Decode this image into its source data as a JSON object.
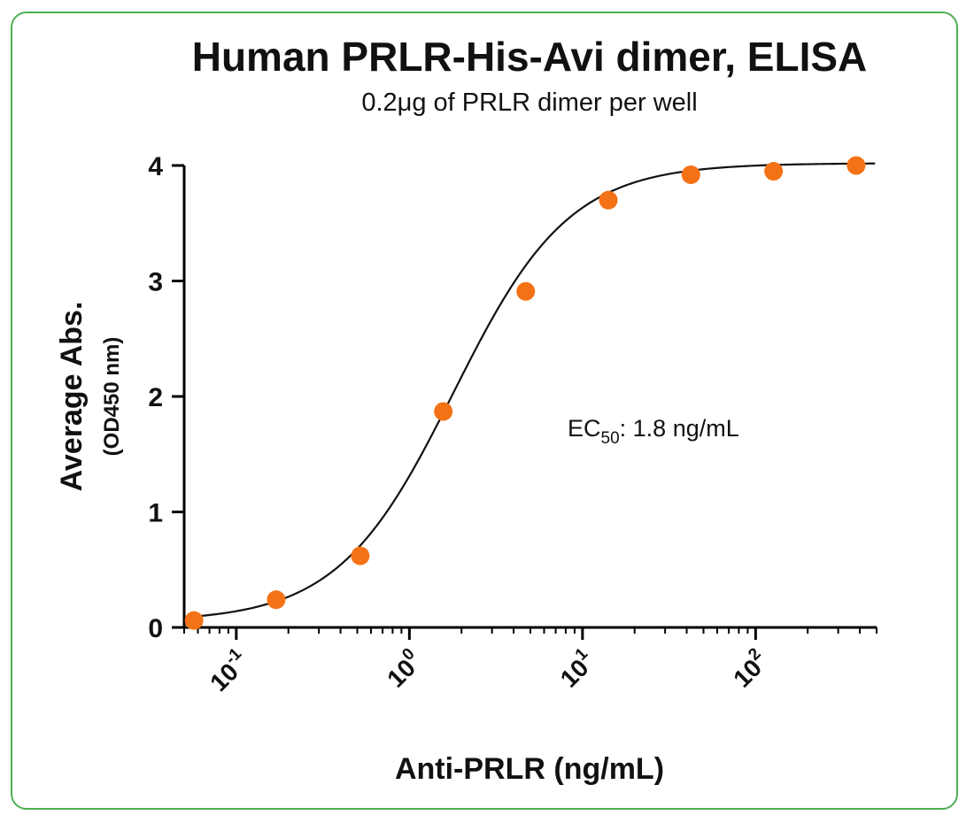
{
  "colors": {
    "frame": "#4caf50",
    "point": "#f47216",
    "curve": "#111111",
    "axis": "#000000"
  },
  "chart_data": {
    "type": "scatter",
    "title": "Human PRLR-His-Avi dimer, ELISA",
    "subtitle": "0.2μg of PRLR dimer per well",
    "ylabel": "Average Abs.",
    "ylabel_sub": "(OD450 nm)",
    "xlabel": "Anti-PRLR (ng/mL)",
    "x_scale": "log",
    "xlim": [
      0.05,
      500
    ],
    "ylim": [
      0,
      4
    ],
    "y_ticks": [
      0,
      1,
      2,
      3,
      4
    ],
    "x_ticks": [
      {
        "value": 0.1,
        "base": "10",
        "exp": "-1"
      },
      {
        "value": 1,
        "base": "10",
        "exp": "0"
      },
      {
        "value": 10,
        "base": "10",
        "exp": "1"
      },
      {
        "value": 100,
        "base": "10",
        "exp": "2"
      }
    ],
    "series": [
      {
        "x": [
          0.057,
          0.17,
          0.52,
          1.57,
          4.7,
          14.1,
          42.3,
          127,
          381
        ],
        "y": [
          0.06,
          0.24,
          0.62,
          1.87,
          2.91,
          3.7,
          3.92,
          3.95,
          4.0
        ]
      }
    ],
    "fit": {
      "model": "4PL",
      "bottom": 0.05,
      "top": 4.02,
      "ec50": 1.8,
      "hill": 1.3
    },
    "annotation": {
      "prefix": "EC",
      "subscript": "50",
      "text": ": 1.8 ng/mL"
    },
    "grid": false,
    "legend": "none"
  }
}
